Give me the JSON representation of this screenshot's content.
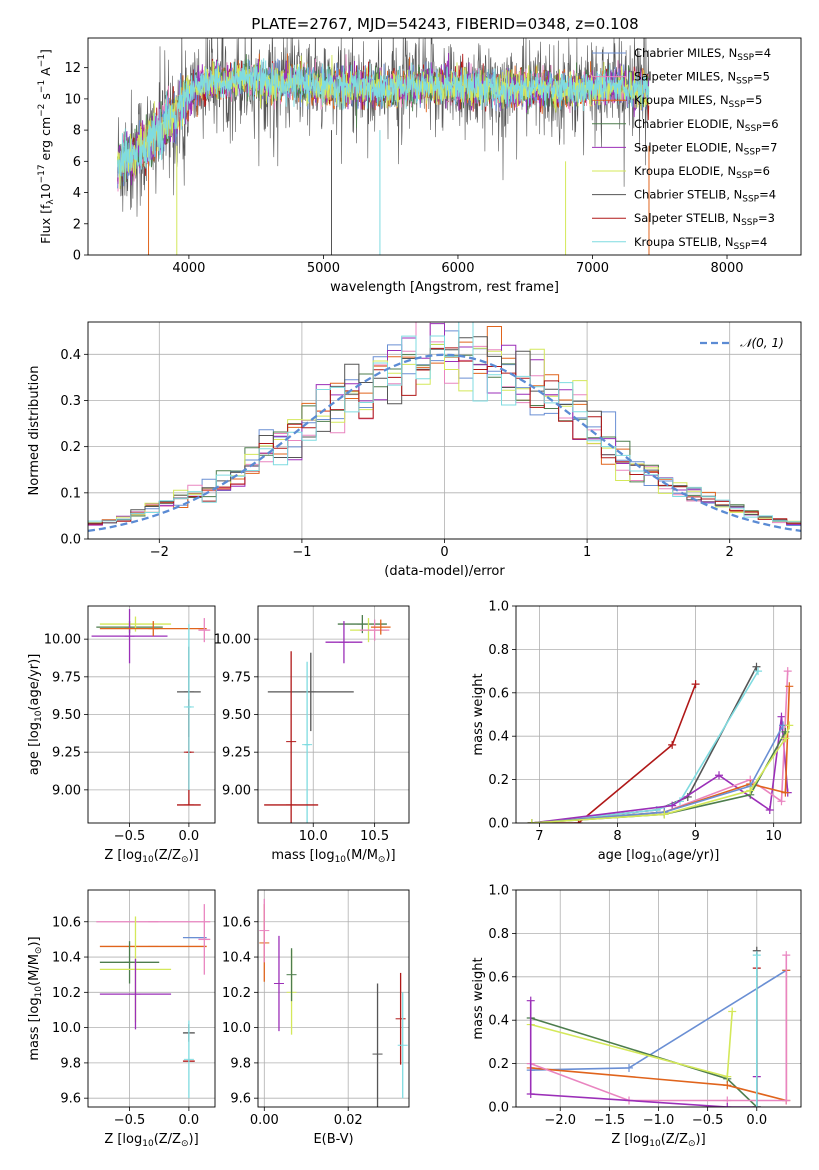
{
  "figure_title": "PLATE=2767, MJD=54243, FIBERID=0348, z=0.108",
  "series_colors": [
    "#6a8fd4",
    "#e985c0",
    "#e0641c",
    "#4d7d4d",
    "#9b2fb8",
    "#d4e85a",
    "#555555",
    "#b01818",
    "#7fdbe0"
  ],
  "chart_data": [
    {
      "id": "spectrum",
      "type": "line",
      "xlabel": "wavelength [Angstrom, rest frame]",
      "ylabel": "Flux [f",
      "ylabel_sub": "λ",
      "ylabel_rest": "10",
      "ylabel_exp1": "−17",
      "ylabel_mid": " erg cm",
      "ylabel_exp2": "−2",
      "ylabel_mid2": " s",
      "ylabel_exp3": "−1",
      "ylabel_mid3": " A",
      "ylabel_exp4": "−1",
      "ylabel_end": "]",
      "xlim": [
        3250,
        8550
      ],
      "ylim": [
        0,
        13.9
      ],
      "xticks": [
        4000,
        5000,
        6000,
        7000,
        8000
      ],
      "yticks": [
        0,
        2,
        4,
        6,
        8,
        10,
        12
      ],
      "legend_position": "right",
      "legend": [
        {
          "label": "Chabrier MILES, N",
          "sub": "SSP",
          "suffix": "=4",
          "color": "#6a8fd4"
        },
        {
          "label": "Salpeter MILES, N",
          "sub": "SSP",
          "suffix": "=5",
          "color": "#e985c0"
        },
        {
          "label": "Kroupa MILES, N",
          "sub": "SSP",
          "suffix": "=5",
          "color": "#e0641c"
        },
        {
          "label": "Chabrier ELODIE, N",
          "sub": "SSP",
          "suffix": "=6",
          "color": "#4d7d4d"
        },
        {
          "label": "Salpeter ELODIE, N",
          "sub": "SSP",
          "suffix": "=7",
          "color": "#9b2fb8"
        },
        {
          "label": "Kroupa ELODIE, N",
          "sub": "SSP",
          "suffix": "=6",
          "color": "#d4e85a"
        },
        {
          "label": "Chabrier STELIB, N",
          "sub": "SSP",
          "suffix": "=4",
          "color": "#555555"
        },
        {
          "label": "Salpeter STELIB, N",
          "sub": "SSP",
          "suffix": "=3",
          "color": "#b01818"
        },
        {
          "label": "Kroupa STELIB, N",
          "sub": "SSP",
          "suffix": "=4",
          "color": "#7fdbe0"
        }
      ],
      "continuum_x": [
        3470,
        3600,
        3700,
        3800,
        3900,
        4000,
        4100,
        4200,
        4300,
        4400,
        4600,
        4800,
        5000,
        5200,
        5500,
        5800,
        6000,
        6300,
        6600,
        6900,
        7200,
        7420
      ],
      "continuum_y": [
        5.9,
        6.5,
        7.1,
        8.0,
        9.0,
        10.3,
        10.9,
        11.2,
        11.0,
        11.3,
        11.0,
        11.1,
        10.7,
        10.8,
        10.7,
        10.9,
        10.8,
        10.6,
        10.7,
        10.6,
        10.9,
        10.5
      ]
    },
    {
      "id": "residuals",
      "type": "line",
      "xlabel": "(data-model)/error",
      "ylabel": "Normed distribution",
      "xlim": [
        -2.5,
        2.5
      ],
      "ylim": [
        0,
        0.47
      ],
      "xticks": [
        -2,
        -1,
        0,
        1,
        2
      ],
      "yticks": [
        0.0,
        0.1,
        0.2,
        0.3,
        0.4
      ],
      "legend": "𝒩(0, 1)",
      "legend_position": "top-right",
      "curve": "normal(0,1)"
    },
    {
      "id": "age_vs_Z",
      "type": "scatter",
      "xlabel": "Z [log",
      "xlabel_sub": "10",
      "xlabel_rest": "(Z/Z",
      "xlabel_sub2": "⊙",
      "xlabel_end": ")]",
      "ylabel": "age  [log",
      "ylabel_sub": "10",
      "ylabel_rest": "(age/yr)]",
      "xlim": [
        -0.85,
        0.22
      ],
      "ylim": [
        8.78,
        10.22
      ],
      "xticks": [
        -0.5,
        0.0
      ],
      "yticks": [
        9.0,
        9.25,
        9.5,
        9.75,
        10.0
      ],
      "points": [
        {
          "x": -0.5,
          "y": 10.08,
          "xerr": 0.28,
          "yerr": 0.04,
          "color": "#4d7d4d"
        },
        {
          "x": -0.45,
          "y": 10.1,
          "xerr": 0.3,
          "yerr": 0.05,
          "color": "#d4e85a"
        },
        {
          "x": -0.5,
          "y": 10.02,
          "xerr": 0.32,
          "yerr": 0.18,
          "color": "#9b2fb8"
        },
        {
          "x": -0.3,
          "y": 10.07,
          "xerr": 0.45,
          "yerr": 0.05,
          "color": "#e0641c"
        },
        {
          "x": 0.13,
          "y": 10.06,
          "xerr": 0.05,
          "yerr": 0.08,
          "color": "#e985c0"
        },
        {
          "x": 0.0,
          "y": 9.65,
          "xerr": 0.1,
          "yerr": 0.3,
          "color": "#555555"
        },
        {
          "x": 0.0,
          "y": 9.25,
          "xerr": 0.02,
          "yerr": 0.35,
          "color": "#b01818"
        },
        {
          "x": 0.0,
          "y": 9.55,
          "xerr": 0.02,
          "yerr": 0.55,
          "color": "#7fdbe0"
        },
        {
          "x": 0.0,
          "y": 8.9,
          "xerr": 0.1,
          "yerr": 0.0,
          "color": "#b01818"
        }
      ]
    },
    {
      "id": "age_vs_mass",
      "type": "scatter",
      "xlabel": "mass [log",
      "xlabel_sub": "10",
      "xlabel_rest": "(M/M",
      "xlabel_sub2": "⊙",
      "xlabel_end": ")]",
      "xlim": [
        9.55,
        10.78
      ],
      "ylim": [
        8.78,
        10.22
      ],
      "xticks": [
        10.0,
        10.5
      ],
      "yticks": [
        9.0,
        9.25,
        9.5,
        9.75,
        10.0
      ],
      "points": [
        {
          "x": 10.4,
          "y": 10.1,
          "xerr": 0.2,
          "yerr": 0.06,
          "color": "#4d7d4d"
        },
        {
          "x": 10.45,
          "y": 10.06,
          "xerr": 0.15,
          "yerr": 0.08,
          "color": "#d4e85a"
        },
        {
          "x": 10.25,
          "y": 9.98,
          "xerr": 0.15,
          "yerr": 0.14,
          "color": "#9b2fb8"
        },
        {
          "x": 10.5,
          "y": 10.06,
          "xerr": 0.12,
          "yerr": 0.07,
          "color": "#e985c0"
        },
        {
          "x": 10.55,
          "y": 10.08,
          "xerr": 0.08,
          "yerr": 0.05,
          "color": "#e0641c"
        },
        {
          "x": 9.98,
          "y": 9.65,
          "xerr": 0.35,
          "yerr": 0.26,
          "color": "#555555"
        },
        {
          "x": 9.95,
          "y": 9.3,
          "xerr": 0.02,
          "yerr": 0.55,
          "color": "#7fdbe0"
        },
        {
          "x": 9.82,
          "y": 8.9,
          "xerr": 0.22,
          "yerr": 0.0,
          "color": "#b01818"
        },
        {
          "x": 9.82,
          "y": 9.32,
          "xerr": 0.0,
          "yerr": 0.6,
          "color": "#b01818"
        }
      ]
    },
    {
      "id": "mass_weight_vs_age",
      "type": "line",
      "xlabel": "age  [log",
      "xlabel_sub": "10",
      "xlabel_rest": "(age/yr)]",
      "ylabel": "mass weight",
      "xlim": [
        6.7,
        10.35
      ],
      "ylim": [
        0,
        1.0
      ],
      "xticks": [
        7,
        8,
        9,
        10
      ],
      "yticks": [
        0.0,
        0.2,
        0.4,
        0.6,
        0.8,
        1.0
      ],
      "series": [
        {
          "color": "#b01818",
          "x": [
            6.9,
            7.5,
            8.7,
            9.0
          ],
          "y": [
            0.0,
            0.0,
            0.36,
            0.64
          ]
        },
        {
          "color": "#555555",
          "x": [
            6.9,
            8.5,
            8.9,
            9.78
          ],
          "y": [
            0.0,
            0.06,
            0.12,
            0.72
          ]
        },
        {
          "color": "#7fdbe0",
          "x": [
            6.9,
            8.5,
            8.8,
            9.8
          ],
          "y": [
            0.0,
            0.06,
            0.1,
            0.7
          ]
        },
        {
          "color": "#9b2fb8",
          "x": [
            6.9,
            8.7,
            9.3,
            9.95,
            10.1,
            10.18
          ],
          "y": [
            0.0,
            0.08,
            0.22,
            0.06,
            0.49,
            0.14
          ]
        },
        {
          "color": "#e985c0",
          "x": [
            6.9,
            8.6,
            9.7,
            10.1,
            10.18
          ],
          "y": [
            0.0,
            0.05,
            0.2,
            0.1,
            0.7
          ]
        },
        {
          "color": "#e0641c",
          "x": [
            6.9,
            8.6,
            9.7,
            10.15,
            10.2
          ],
          "y": [
            0.0,
            0.05,
            0.18,
            0.14,
            0.63
          ]
        },
        {
          "color": "#6a8fd4",
          "x": [
            6.9,
            8.6,
            9.7,
            10.12
          ],
          "y": [
            0.0,
            0.05,
            0.17,
            0.45
          ]
        },
        {
          "color": "#4d7d4d",
          "x": [
            6.9,
            8.6,
            9.7,
            10.15
          ],
          "y": [
            0.0,
            0.04,
            0.13,
            0.42
          ]
        },
        {
          "color": "#d4e85a",
          "x": [
            6.9,
            8.6,
            9.7,
            10.15,
            10.2
          ],
          "y": [
            0.0,
            0.04,
            0.15,
            0.39,
            0.45
          ]
        }
      ]
    },
    {
      "id": "mass_vs_Z",
      "type": "scatter",
      "xlabel": "Z [log",
      "xlabel_sub": "10",
      "xlabel_rest": "(Z/Z",
      "xlabel_sub2": "⊙",
      "xlabel_end": ")]",
      "ylabel": "mass [log",
      "ylabel_sub": "10",
      "ylabel_rest": "(M/M",
      "ylabel_sub2": "⊙",
      "ylabel_end": ")]",
      "xlim": [
        -0.85,
        0.22
      ],
      "ylim": [
        9.55,
        10.78
      ],
      "xticks": [
        -0.5,
        0.0
      ],
      "yticks": [
        9.6,
        9.8,
        10.0,
        10.2,
        10.4,
        10.6
      ],
      "points": [
        {
          "x": -0.3,
          "y": 10.6,
          "xerr": 0.48,
          "yerr": 0.0,
          "color": "#e985c0"
        },
        {
          "x": -0.3,
          "y": 10.46,
          "xerr": 0.45,
          "yerr": 0.0,
          "color": "#e0641c"
        },
        {
          "x": -0.5,
          "y": 10.37,
          "xerr": 0.25,
          "yerr": 0.12,
          "color": "#4d7d4d"
        },
        {
          "x": -0.45,
          "y": 10.33,
          "xerr": 0.3,
          "yerr": 0.3,
          "color": "#d4e85a"
        },
        {
          "x": -0.45,
          "y": 10.19,
          "xerr": 0.3,
          "yerr": 0.2,
          "color": "#9b2fb8"
        },
        {
          "x": 0.05,
          "y": 10.51,
          "xerr": 0.1,
          "yerr": 0.0,
          "color": "#6a8fd4"
        },
        {
          "x": 0.13,
          "y": 10.5,
          "xerr": 0.05,
          "yerr": 0.2,
          "color": "#e985c0"
        },
        {
          "x": 0.0,
          "y": 9.97,
          "xerr": 0.05,
          "yerr": 0.05,
          "color": "#555555"
        },
        {
          "x": 0.0,
          "y": 9.81,
          "xerr": 0.05,
          "yerr": 0.0,
          "color": "#b01818"
        },
        {
          "x": 0.0,
          "y": 9.82,
          "xerr": 0.0,
          "yerr": 0.22,
          "color": "#7fdbe0"
        }
      ]
    },
    {
      "id": "mass_vs_EBV",
      "type": "scatter",
      "xlabel": "E(B-V)",
      "xlim": [
        -0.0015,
        0.0345
      ],
      "ylim": [
        9.55,
        10.78
      ],
      "xticks": [
        0.0,
        0.02
      ],
      "yticks": [
        9.6,
        9.8,
        10.0,
        10.2,
        10.4,
        10.6
      ],
      "points": [
        {
          "x": 0.0,
          "y": 10.48,
          "xerr": 0.0,
          "yerr": 0.22,
          "color": "#e0641c"
        },
        {
          "x": 0.0,
          "y": 10.55,
          "xerr": 0.0,
          "yerr": 0.18,
          "color": "#e985c0"
        },
        {
          "x": 0.0035,
          "y": 10.25,
          "xerr": 0.0,
          "yerr": 0.27,
          "color": "#9b2fb8"
        },
        {
          "x": 0.0065,
          "y": 10.2,
          "xerr": 0.0,
          "yerr": 0.24,
          "color": "#d4e85a"
        },
        {
          "x": 0.0065,
          "y": 10.3,
          "xerr": 0.0,
          "yerr": 0.15,
          "color": "#4d7d4d"
        },
        {
          "x": 0.027,
          "y": 9.85,
          "xerr": 0.0,
          "yerr": 0.4,
          "color": "#555555"
        },
        {
          "x": 0.0325,
          "y": 10.05,
          "xerr": 0.0,
          "yerr": 0.26,
          "color": "#b01818"
        },
        {
          "x": 0.033,
          "y": 9.9,
          "xerr": 0.0,
          "yerr": 0.3,
          "color": "#7fdbe0"
        }
      ]
    },
    {
      "id": "mass_weight_vs_Z",
      "type": "line",
      "xlabel": "Z [log",
      "xlabel_sub": "10",
      "xlabel_rest": "(Z/Z",
      "xlabel_sub2": "⊙",
      "xlabel_end": ")]",
      "ylabel": "mass weight",
      "xlim": [
        -2.45,
        0.45
      ],
      "ylim": [
        0,
        1.0
      ],
      "xticks": [
        -2.0,
        -1.5,
        -1.0,
        -0.5,
        0.0
      ],
      "yticks": [
        0.0,
        0.2,
        0.4,
        0.6,
        0.8,
        1.0
      ],
      "series": [
        {
          "color": "#6a8fd4",
          "x": [
            -2.3,
            -1.3,
            0.3
          ],
          "y": [
            0.17,
            0.18,
            0.63
          ]
        },
        {
          "color": "#4d7d4d",
          "x": [
            -2.3,
            -0.3,
            0.0
          ],
          "y": [
            0.41,
            0.13,
            0.0
          ]
        },
        {
          "color": "#d4e85a",
          "x": [
            -2.3,
            -0.3,
            -0.25
          ],
          "y": [
            0.38,
            0.14,
            0.44
          ]
        },
        {
          "color": "#e0641c",
          "x": [
            -2.3,
            -0.3,
            0.3,
            0.3
          ],
          "y": [
            0.18,
            0.1,
            0.03,
            0.63
          ]
        },
        {
          "color": "#e985c0",
          "x": [
            -2.3,
            -1.3,
            -0.3,
            0.3,
            0.3
          ],
          "y": [
            0.2,
            0.03,
            0.03,
            0.03,
            0.7
          ]
        },
        {
          "color": "#9b2fb8",
          "x": [
            -2.3,
            -2.3,
            -0.3,
            0.0,
            0.0
          ],
          "y": [
            0.49,
            0.06,
            0.0,
            0.0,
            0.14
          ]
        },
        {
          "color": "#555555",
          "x": [
            0.0,
            0.0
          ],
          "y": [
            0.0,
            0.72
          ]
        },
        {
          "color": "#b01818",
          "x": [
            0.0,
            0.0
          ],
          "y": [
            0.0,
            0.64
          ]
        },
        {
          "color": "#7fdbe0",
          "x": [
            0.0,
            0.0
          ],
          "y": [
            0.0,
            0.7
          ]
        }
      ]
    }
  ]
}
